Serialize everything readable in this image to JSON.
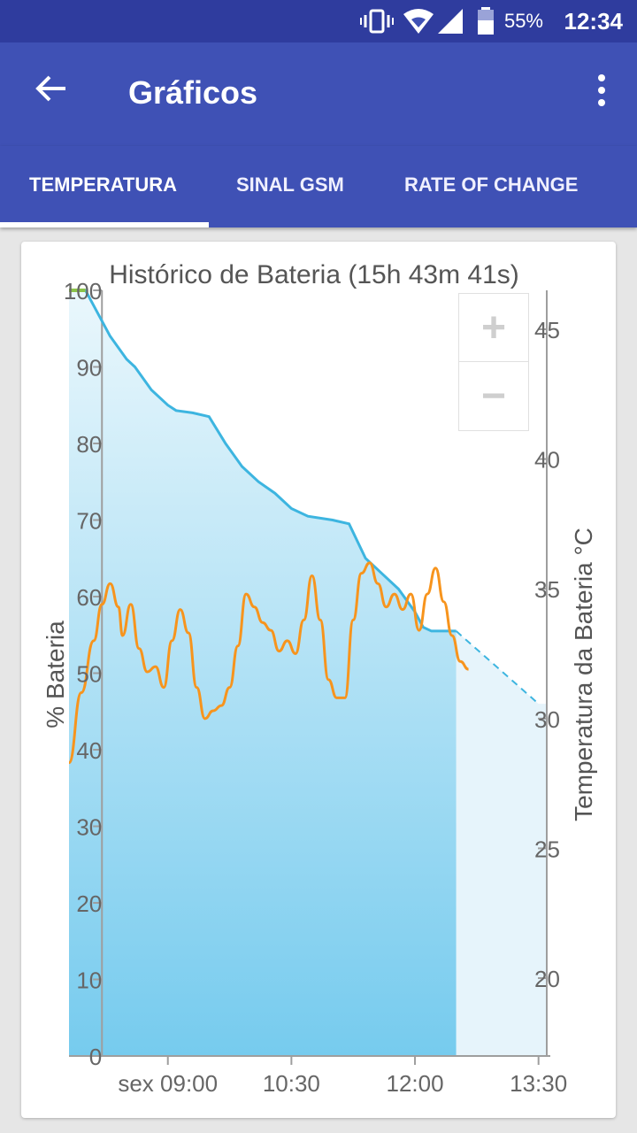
{
  "status_bar": {
    "battery_percent": "55%",
    "time": "12:34"
  },
  "app_bar": {
    "title": "Gráficos"
  },
  "tabs": [
    {
      "label": "TEMPERATURA",
      "selected": true
    },
    {
      "label": "SINAL GSM",
      "selected": false
    },
    {
      "label": "RATE OF CHANGE",
      "selected": false
    }
  ],
  "chart_data": {
    "type": "line",
    "title": "Histórico de Bateria (15h 43m 41s)",
    "y_left_label": "% Bateria",
    "y_right_label": "Temperatura da Bateria °C",
    "x_ticks": [
      "sex 09:00",
      "10:30",
      "12:00",
      "13:30"
    ],
    "y_left_ticks": [
      "0",
      "10",
      "20",
      "30",
      "40",
      "50",
      "60",
      "70",
      "80",
      "90",
      "100"
    ],
    "y_right_ticks": [
      "20",
      "25",
      "30",
      "35",
      "40",
      "45"
    ],
    "ylim_left": [
      0,
      100
    ],
    "ylim_right": [
      17,
      46.5
    ],
    "xlim_minutes": [
      7.8,
      13.6
    ],
    "colors": {
      "battery": "#3db5e0",
      "temperature": "#f7941d",
      "fill_top": "#eaf7fc",
      "fill_bottom": "#76cbee",
      "projection_fill": "#e6f4fb"
    },
    "series": [
      {
        "name": "% Bateria",
        "points": [
          [
            7.8,
            100
          ],
          [
            8.0,
            100
          ],
          [
            8.1,
            98
          ],
          [
            8.3,
            94
          ],
          [
            8.5,
            91
          ],
          [
            8.6,
            90
          ],
          [
            8.8,
            87
          ],
          [
            9.0,
            85
          ],
          [
            9.1,
            84.3
          ],
          [
            9.3,
            84
          ],
          [
            9.5,
            83.5
          ],
          [
            9.7,
            80
          ],
          [
            9.9,
            77
          ],
          [
            10.1,
            75
          ],
          [
            10.3,
            73.5
          ],
          [
            10.5,
            71.5
          ],
          [
            10.7,
            70.5
          ],
          [
            11.0,
            70
          ],
          [
            11.2,
            69.5
          ],
          [
            11.4,
            65
          ],
          [
            11.6,
            63
          ],
          [
            11.8,
            61
          ],
          [
            12.0,
            58
          ],
          [
            12.1,
            56
          ],
          [
            12.2,
            55.5
          ],
          [
            12.5,
            55.5
          ]
        ],
        "projection": [
          [
            12.5,
            55.5
          ],
          [
            13.5,
            46
          ]
        ]
      },
      {
        "name": "Temperatura da Bateria",
        "points": [
          [
            7.8,
            28.3
          ],
          [
            7.95,
            31
          ],
          [
            8.1,
            33
          ],
          [
            8.2,
            34.4
          ],
          [
            8.3,
            35.2
          ],
          [
            8.4,
            34.3
          ],
          [
            8.45,
            33.2
          ],
          [
            8.55,
            34.4
          ],
          [
            8.65,
            32.7
          ],
          [
            8.75,
            31.8
          ],
          [
            8.85,
            32
          ],
          [
            8.95,
            31.2
          ],
          [
            9.05,
            33
          ],
          [
            9.15,
            34.2
          ],
          [
            9.25,
            33.3
          ],
          [
            9.35,
            31.2
          ],
          [
            9.45,
            30
          ],
          [
            9.55,
            30.3
          ],
          [
            9.65,
            30.5
          ],
          [
            9.75,
            31.2
          ],
          [
            9.85,
            32.8
          ],
          [
            9.95,
            34.8
          ],
          [
            10.05,
            34.3
          ],
          [
            10.15,
            33.7
          ],
          [
            10.25,
            33.4
          ],
          [
            10.35,
            32.6
          ],
          [
            10.45,
            33
          ],
          [
            10.55,
            32.5
          ],
          [
            10.65,
            33.8
          ],
          [
            10.75,
            35.5
          ],
          [
            10.85,
            33.8
          ],
          [
            10.95,
            31.5
          ],
          [
            11.05,
            30.8
          ],
          [
            11.15,
            30.8
          ],
          [
            11.25,
            33.8
          ],
          [
            11.35,
            35.6
          ],
          [
            11.45,
            36
          ],
          [
            11.55,
            35.2
          ],
          [
            11.65,
            34.3
          ],
          [
            11.75,
            34.8
          ],
          [
            11.85,
            34.2
          ],
          [
            11.95,
            34.8
          ],
          [
            12.05,
            33.4
          ],
          [
            12.15,
            34.8
          ],
          [
            12.25,
            35.8
          ],
          [
            12.35,
            34.5
          ],
          [
            12.45,
            33.2
          ],
          [
            12.55,
            32.2
          ],
          [
            12.65,
            31.9
          ]
        ]
      }
    ]
  }
}
